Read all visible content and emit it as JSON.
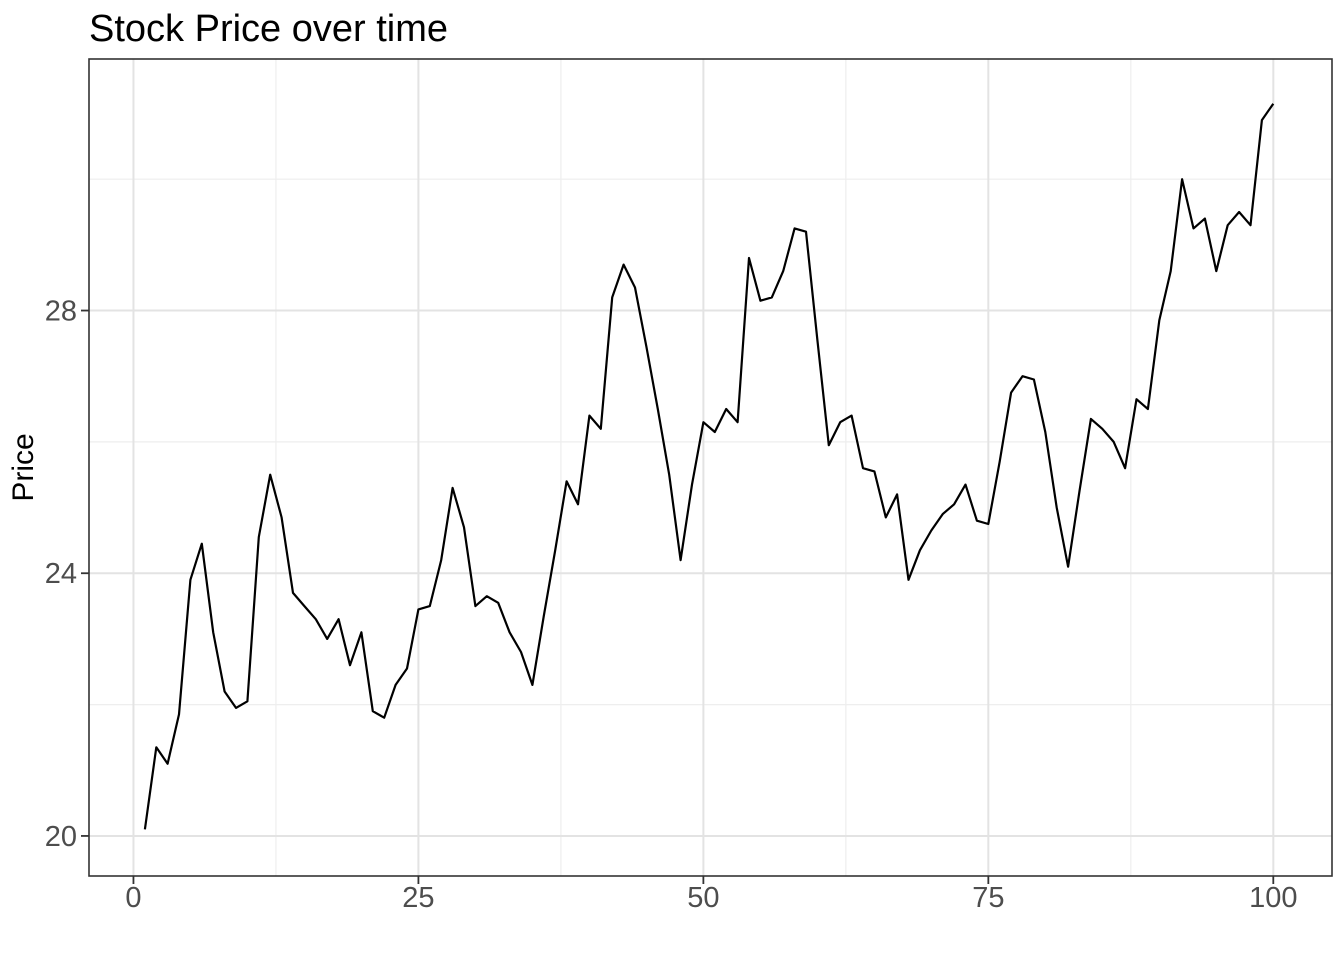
{
  "chart_data": {
    "type": "line",
    "title": "Stock Price over time",
    "xlabel": "",
    "ylabel": "Price",
    "legend_position": "none",
    "grid": true,
    "x": [
      1,
      2,
      3,
      4,
      5,
      6,
      7,
      8,
      9,
      10,
      11,
      12,
      13,
      14,
      15,
      16,
      17,
      18,
      19,
      20,
      21,
      22,
      23,
      24,
      25,
      26,
      27,
      28,
      29,
      30,
      31,
      32,
      33,
      34,
      35,
      36,
      37,
      38,
      39,
      40,
      41,
      42,
      43,
      44,
      45,
      46,
      47,
      48,
      49,
      50,
      51,
      52,
      53,
      54,
      55,
      56,
      57,
      58,
      59,
      60,
      61,
      62,
      63,
      64,
      65,
      66,
      67,
      68,
      69,
      70,
      71,
      72,
      73,
      74,
      75,
      76,
      77,
      78,
      79,
      80,
      81,
      82,
      83,
      84,
      85,
      86,
      87,
      88,
      89,
      90,
      91,
      92,
      93,
      94,
      95,
      96,
      97,
      98,
      99,
      100
    ],
    "values": [
      20.1,
      21.35,
      21.1,
      21.85,
      23.9,
      24.45,
      23.1,
      22.2,
      21.95,
      22.05,
      24.55,
      25.5,
      24.85,
      23.7,
      23.5,
      23.3,
      23.0,
      23.3,
      22.6,
      23.1,
      21.9,
      21.8,
      22.3,
      22.55,
      23.45,
      23.5,
      24.2,
      25.3,
      24.7,
      23.5,
      23.65,
      23.55,
      23.1,
      22.8,
      22.3,
      23.35,
      24.35,
      25.4,
      25.05,
      26.4,
      26.2,
      28.2,
      28.7,
      28.35,
      27.45,
      26.5,
      25.5,
      24.2,
      25.35,
      26.3,
      26.15,
      26.5,
      26.3,
      28.8,
      28.15,
      28.2,
      28.6,
      29.25,
      29.2,
      27.55,
      25.95,
      26.3,
      26.4,
      25.6,
      25.55,
      24.85,
      25.2,
      23.9,
      24.35,
      24.65,
      24.9,
      25.05,
      25.35,
      24.8,
      24.75,
      25.7,
      26.75,
      27.0,
      26.95,
      26.15,
      25.0,
      24.1,
      25.25,
      26.35,
      26.2,
      26.0,
      25.6,
      26.65,
      26.5,
      27.85,
      28.6,
      30.0,
      29.25,
      29.4,
      28.6,
      29.3,
      29.5,
      29.3,
      30.9,
      31.15
    ],
    "x_ticks": {
      "values": [
        0,
        25,
        50,
        75,
        100
      ],
      "labels": [
        "0",
        "25",
        "50",
        "75",
        "100"
      ]
    },
    "y_ticks": {
      "values": [
        20,
        24,
        28
      ],
      "labels": [
        "20",
        "24",
        "28"
      ]
    },
    "x_minor": [
      12.5,
      37.5,
      62.5,
      87.5
    ],
    "y_minor": [
      22,
      26,
      30
    ],
    "xlim": [
      -3.9,
      105.15
    ],
    "ylim": [
      19.39,
      31.83
    ],
    "style": {
      "line_color": "#000000",
      "panel_border": "#333333",
      "grid_major": "#e3e3e3",
      "grid_minor": "#eeeeee",
      "tick_color": "#333333",
      "tick_label_color": "#4d4d4d",
      "title_color": "#000000",
      "axis_title_color": "#000000",
      "background": "#ffffff"
    }
  }
}
